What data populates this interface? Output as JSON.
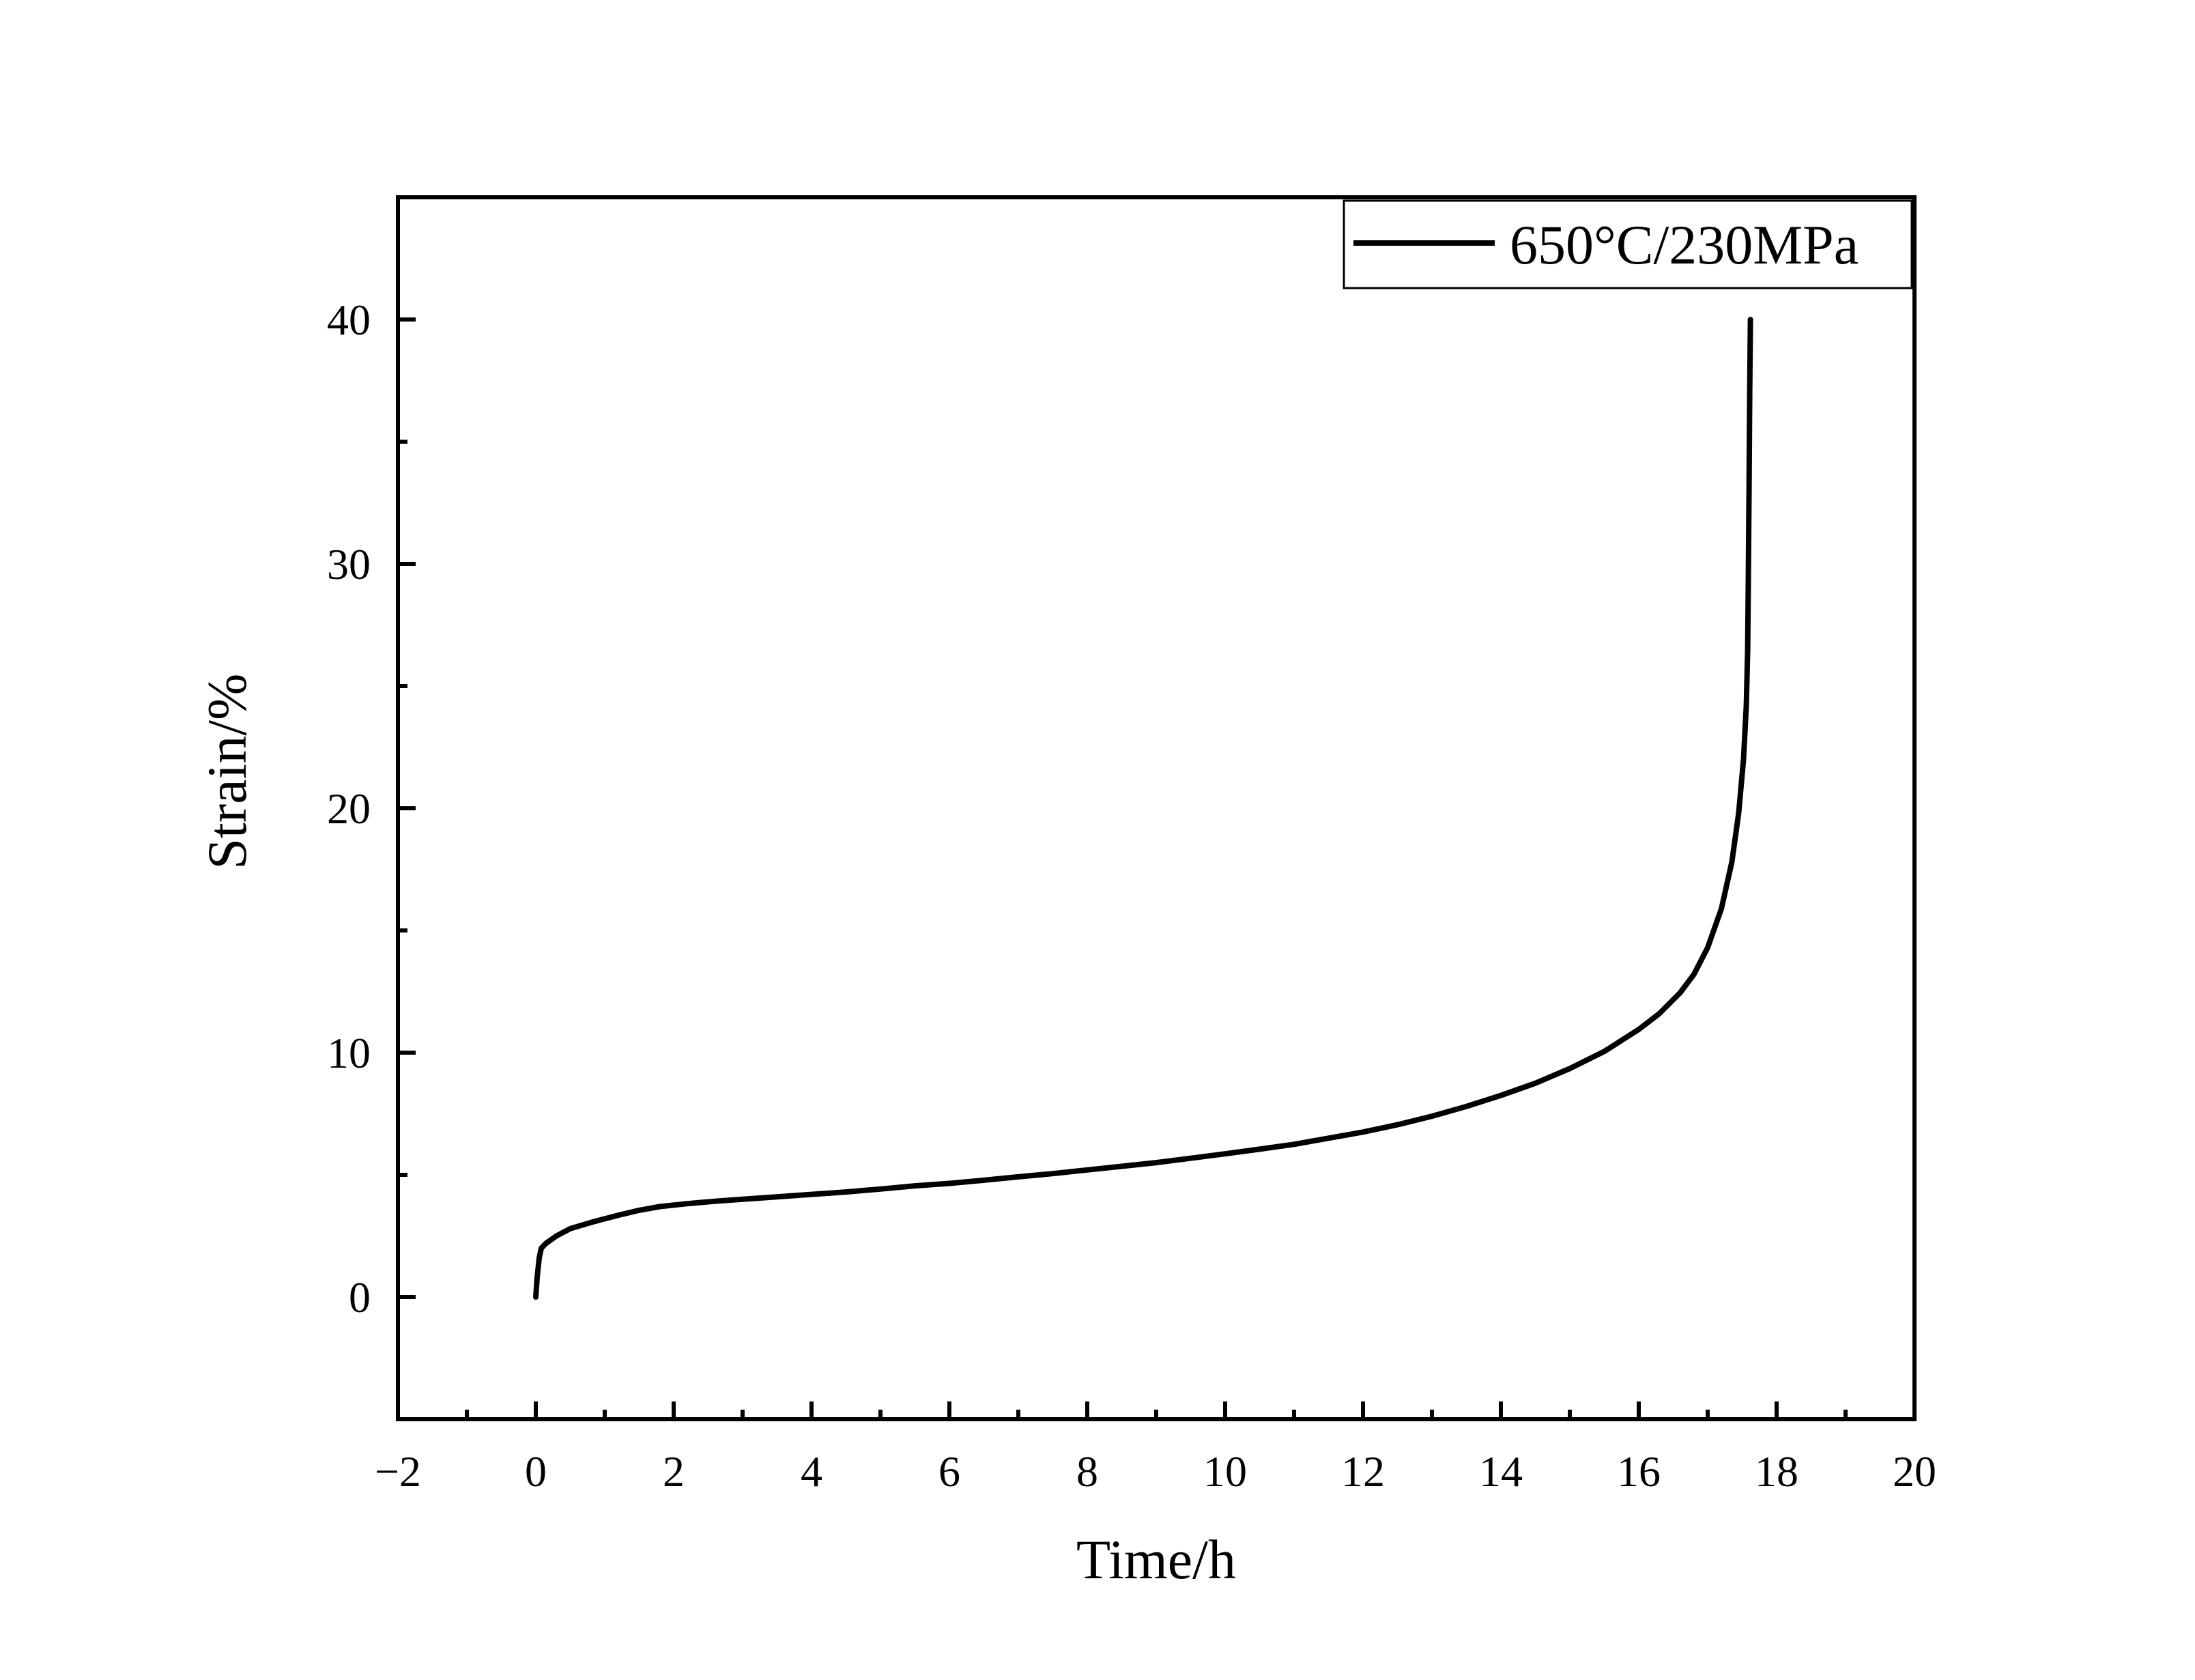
{
  "chart_data": {
    "type": "line",
    "xlabel": "Time/h",
    "ylabel": "Strain/%",
    "xlim": [
      -2,
      20
    ],
    "ylim": [
      -5,
      45
    ],
    "x_ticks": [
      -2,
      0,
      2,
      4,
      6,
      8,
      10,
      12,
      14,
      16,
      18,
      20
    ],
    "x_tick_labels": [
      "−2",
      "0",
      "2",
      "4",
      "6",
      "8",
      "10",
      "12",
      "14",
      "16",
      "18",
      "20"
    ],
    "y_ticks": [
      0,
      10,
      20,
      30,
      40
    ],
    "y_tick_labels": [
      "0",
      "10",
      "20",
      "30",
      "40"
    ],
    "grid": false,
    "legend_position": "top-right",
    "series": [
      {
        "name": "650°C/230MPa",
        "color": "#000000",
        "x": [
          0.0,
          0.02,
          0.05,
          0.08,
          0.15,
          0.3,
          0.5,
          0.8,
          1.0,
          1.2,
          1.5,
          1.8,
          2.2,
          2.6,
          3.0,
          3.5,
          4.0,
          4.5,
          5.0,
          5.5,
          6.0,
          6.5,
          7.0,
          7.5,
          8.0,
          8.5,
          9.0,
          9.5,
          10.0,
          10.5,
          11.0,
          11.5,
          12.0,
          12.5,
          13.0,
          13.5,
          14.0,
          14.5,
          15.0,
          15.5,
          16.0,
          16.3,
          16.6,
          16.8,
          17.0,
          17.2,
          17.35,
          17.45,
          17.52,
          17.56,
          17.58,
          17.59,
          17.6,
          17.61,
          17.62
        ],
        "y": [
          0.0,
          0.8,
          1.6,
          2.0,
          2.2,
          2.5,
          2.8,
          3.05,
          3.2,
          3.35,
          3.55,
          3.7,
          3.82,
          3.92,
          4.0,
          4.1,
          4.2,
          4.3,
          4.42,
          4.55,
          4.65,
          4.78,
          4.92,
          5.05,
          5.2,
          5.35,
          5.5,
          5.68,
          5.86,
          6.05,
          6.25,
          6.5,
          6.75,
          7.05,
          7.4,
          7.8,
          8.25,
          8.75,
          9.35,
          10.05,
          10.95,
          11.6,
          12.45,
          13.2,
          14.3,
          15.9,
          17.8,
          19.8,
          22.0,
          24.2,
          26.5,
          29.5,
          33.0,
          37.0,
          40.0
        ]
      }
    ]
  }
}
